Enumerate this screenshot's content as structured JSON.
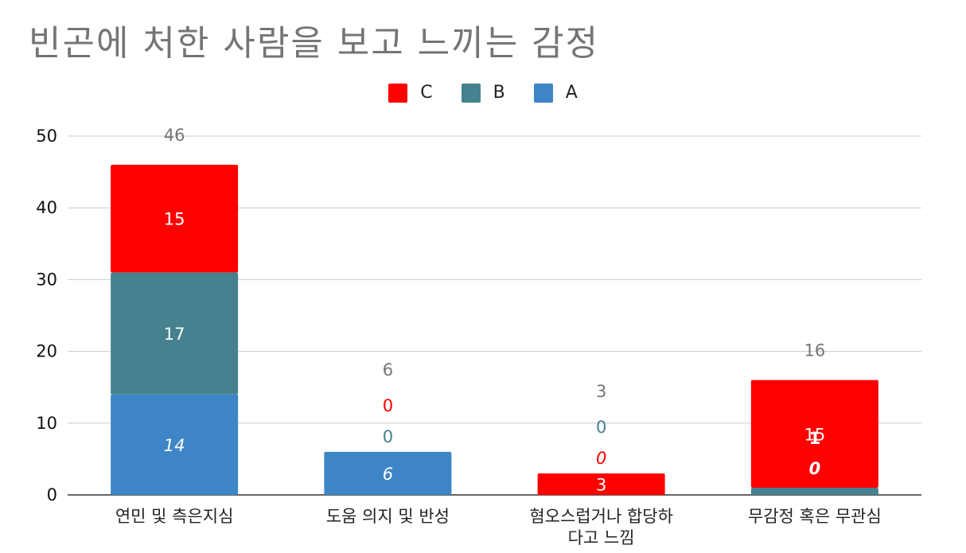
{
  "chart_data": {
    "type": "bar",
    "stacked": true,
    "title": "빈곤에 처한 사람을 보고 느끼는 감정",
    "categories": [
      "연민 및 측은지심",
      "도움 의지 및 반성",
      "혐오스럽거나 합당하다고 느낌",
      "무감정 혹은 무관심"
    ],
    "category_lines": [
      [
        "연민 및 측은지심"
      ],
      [
        "도움 의지 및 반성"
      ],
      [
        "혐오스럽거나 합당하",
        "다고 느낌"
      ],
      [
        "무감정 혹은 무관심"
      ]
    ],
    "series": [
      {
        "name": "A",
        "color": "#3d85c6",
        "values": [
          14,
          6,
          0,
          0
        ],
        "labels": [
          "14",
          "6",
          "0",
          "0"
        ]
      },
      {
        "name": "B",
        "color": "#45818e",
        "values": [
          17,
          0,
          0,
          1
        ],
        "labels": [
          "17",
          "0",
          "0",
          "1"
        ]
      },
      {
        "name": "C",
        "color": "#ff0000",
        "values": [
          15,
          0,
          3,
          15
        ],
        "labels": [
          "15",
          "0",
          "3",
          "15"
        ]
      }
    ],
    "totals": [
      "46",
      "6",
      "3",
      "16"
    ],
    "legend_order": [
      "C",
      "B",
      "A"
    ],
    "yticks": [
      "0",
      "10",
      "20",
      "30",
      "40",
      "50"
    ],
    "ylim": [
      0,
      50
    ],
    "grid": true,
    "legend_position": "top"
  }
}
